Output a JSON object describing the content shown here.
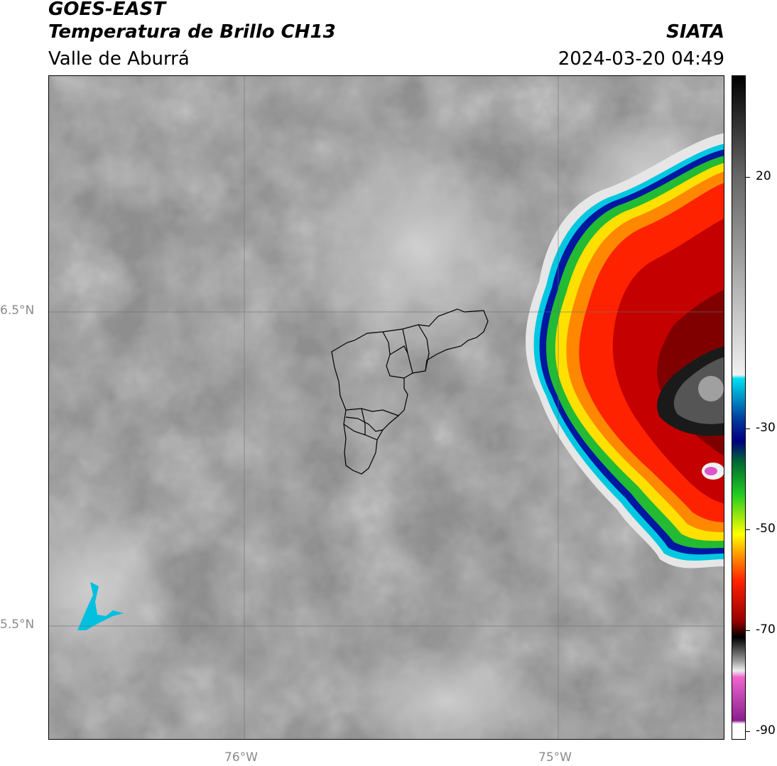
{
  "header": {
    "satellite": "GOES-EAST",
    "product": "Temperatura de Brillo CH13",
    "region": "Valle de Aburrá",
    "agency": "SIATA",
    "timestamp": "2024-03-20 04:49"
  },
  "map": {
    "lat_labels": [
      "6.5°N",
      "5.5°N"
    ],
    "lon_labels": [
      "76°W",
      "75°W"
    ],
    "background_colors": {
      "gray_mid": "#8c8c8c",
      "gray_light": "#bdbdbd",
      "grid": "#6f6f6f"
    }
  },
  "colorbar": {
    "unit_range": [
      -90,
      30
    ],
    "ticks": [
      "20",
      "-30",
      "-50",
      "-70",
      "-90"
    ],
    "colors": {
      "cold_magenta": "#8b1e8f",
      "pink": "#ee66cc",
      "light_gray": "#e0e0e0",
      "black": "#111111",
      "dark_red": "#8b0000",
      "red": "#ff2200",
      "orange": "#ff8800",
      "yellow": "#ffee00",
      "green": "#33cc33",
      "dark_blue": "#000080",
      "cyan": "#00d0e8",
      "white": "#f5f5f5",
      "gray_warm": "#444444"
    }
  }
}
